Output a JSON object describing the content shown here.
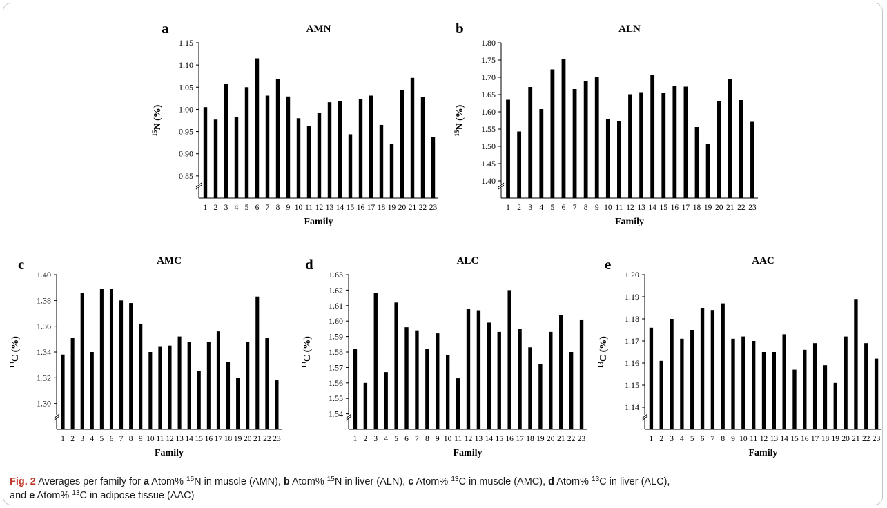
{
  "figure": {
    "caption": {
      "fig_label": "Fig. 2",
      "t1": "  Averages per family for ",
      "a": "a",
      "t2": " Atom% ",
      "sup15": "15",
      "t3": "N in muscle (AMN), ",
      "b": "b",
      "t4": " Atom% ",
      "sup15b": "15",
      "t5": "N in liver (ALN), ",
      "c": "c",
      "t6": " Atom% ",
      "sup13": "13",
      "t7": "C in muscle (AMC), ",
      "d": "d",
      "t8": " Atom% ",
      "sup13b": "13",
      "t9": "C in liver (ALC),",
      "t10": "and ",
      "e": "e",
      "t11": " Atom% ",
      "sup13c": "13",
      "t12": "C in adipose tissue (AAC)"
    }
  },
  "chart_data": [
    {
      "panel": "a",
      "type": "bar",
      "title": "AMN",
      "xlabel": "Family",
      "ylabel_sup": "15",
      "ylabel_main": "N (%)",
      "ylim": [
        0.8,
        1.15
      ],
      "yticks": [
        "0.85",
        "0.90",
        "0.95",
        "1.00",
        "1.05",
        "1.10",
        "1.15"
      ],
      "axis_break": true,
      "categories": [
        "1",
        "2",
        "3",
        "4",
        "5",
        "6",
        "7",
        "8",
        "9",
        "10",
        "11",
        "12",
        "13",
        "14",
        "15",
        "16",
        "17",
        "18",
        "19",
        "20",
        "21",
        "22",
        "23"
      ],
      "values": [
        1.005,
        0.977,
        1.058,
        0.982,
        1.05,
        1.115,
        1.031,
        1.069,
        1.029,
        0.98,
        0.963,
        0.992,
        1.016,
        1.019,
        0.944,
        1.023,
        1.031,
        0.965,
        0.922,
        1.043,
        1.071,
        1.028,
        0.938
      ]
    },
    {
      "panel": "b",
      "type": "bar",
      "title": "ALN",
      "xlabel": "Family",
      "ylabel_sup": "15",
      "ylabel_main": "N (%)",
      "ylim": [
        1.35,
        1.8
      ],
      "yticks": [
        "1.40",
        "1.45",
        "1.50",
        "1.55",
        "1.60",
        "1.65",
        "1.70",
        "1.75",
        "1.80"
      ],
      "axis_break": true,
      "categories": [
        "1",
        "2",
        "3",
        "4",
        "5",
        "6",
        "7",
        "8",
        "9",
        "10",
        "11",
        "12",
        "13",
        "14",
        "15",
        "16",
        "17",
        "18",
        "19",
        "20",
        "21",
        "22",
        "23"
      ],
      "values": [
        1.635,
        1.543,
        1.672,
        1.608,
        1.723,
        1.753,
        1.666,
        1.688,
        1.702,
        1.58,
        1.573,
        1.651,
        1.655,
        1.708,
        1.654,
        1.675,
        1.673,
        1.556,
        1.508,
        1.631,
        1.694,
        1.634,
        1.571
      ]
    },
    {
      "panel": "c",
      "type": "bar",
      "title": "AMC",
      "xlabel": "Family",
      "ylabel_sup": "13",
      "ylabel_main": "C (%)",
      "ylim": [
        1.28,
        1.4
      ],
      "yticks": [
        "1.30",
        "1.32",
        "1.34",
        "1.36",
        "1.38",
        "1.40"
      ],
      "axis_break": true,
      "categories": [
        "1",
        "2",
        "3",
        "4",
        "5",
        "6",
        "7",
        "8",
        "9",
        "10",
        "11",
        "12",
        "13",
        "14",
        "15",
        "16",
        "17",
        "18",
        "19",
        "20",
        "21",
        "22",
        "23"
      ],
      "values": [
        1.338,
        1.351,
        1.386,
        1.34,
        1.389,
        1.389,
        1.38,
        1.378,
        1.362,
        1.34,
        1.344,
        1.345,
        1.352,
        1.348,
        1.325,
        1.348,
        1.356,
        1.332,
        1.32,
        1.348,
        1.383,
        1.351,
        1.318
      ]
    },
    {
      "panel": "d",
      "type": "bar",
      "title": "ALC",
      "xlabel": "Family",
      "ylabel_sup": "13",
      "ylabel_main": "C (%)",
      "ylim": [
        1.53,
        1.63
      ],
      "yticks": [
        "1.54",
        "1.55",
        "1.56",
        "1.57",
        "1.58",
        "1.59",
        "1.60",
        "1.61",
        "1.62",
        "1.63"
      ],
      "axis_break": true,
      "categories": [
        "1",
        "2",
        "3",
        "4",
        "5",
        "6",
        "7",
        "8",
        "9",
        "10",
        "11",
        "12",
        "13",
        "14",
        "15",
        "16",
        "17",
        "18",
        "19",
        "20",
        "21",
        "22",
        "23"
      ],
      "values": [
        1.582,
        1.56,
        1.618,
        1.567,
        1.612,
        1.596,
        1.594,
        1.582,
        1.592,
        1.578,
        1.563,
        1.608,
        1.607,
        1.599,
        1.593,
        1.62,
        1.595,
        1.583,
        1.572,
        1.593,
        1.604,
        1.58,
        1.601
      ]
    },
    {
      "panel": "e",
      "type": "bar",
      "title": "AAC",
      "xlabel": "Family",
      "ylabel_sup": "13",
      "ylabel_main": "C (%)",
      "ylim": [
        1.13,
        1.2
      ],
      "yticks": [
        "1.14",
        "1.15",
        "1.16",
        "1.17",
        "1.18",
        "1.19",
        "1.20"
      ],
      "axis_break": true,
      "categories": [
        "1",
        "2",
        "3",
        "4",
        "5",
        "6",
        "7",
        "8",
        "9",
        "10",
        "11",
        "12",
        "13",
        "14",
        "15",
        "16",
        "17",
        "18",
        "19",
        "20",
        "21",
        "22",
        "23"
      ],
      "values": [
        1.176,
        1.161,
        1.18,
        1.171,
        1.175,
        1.185,
        1.184,
        1.187,
        1.171,
        1.172,
        1.17,
        1.165,
        1.165,
        1.173,
        1.157,
        1.166,
        1.169,
        1.159,
        1.151,
        1.172,
        1.189,
        1.169,
        1.162
      ]
    }
  ]
}
